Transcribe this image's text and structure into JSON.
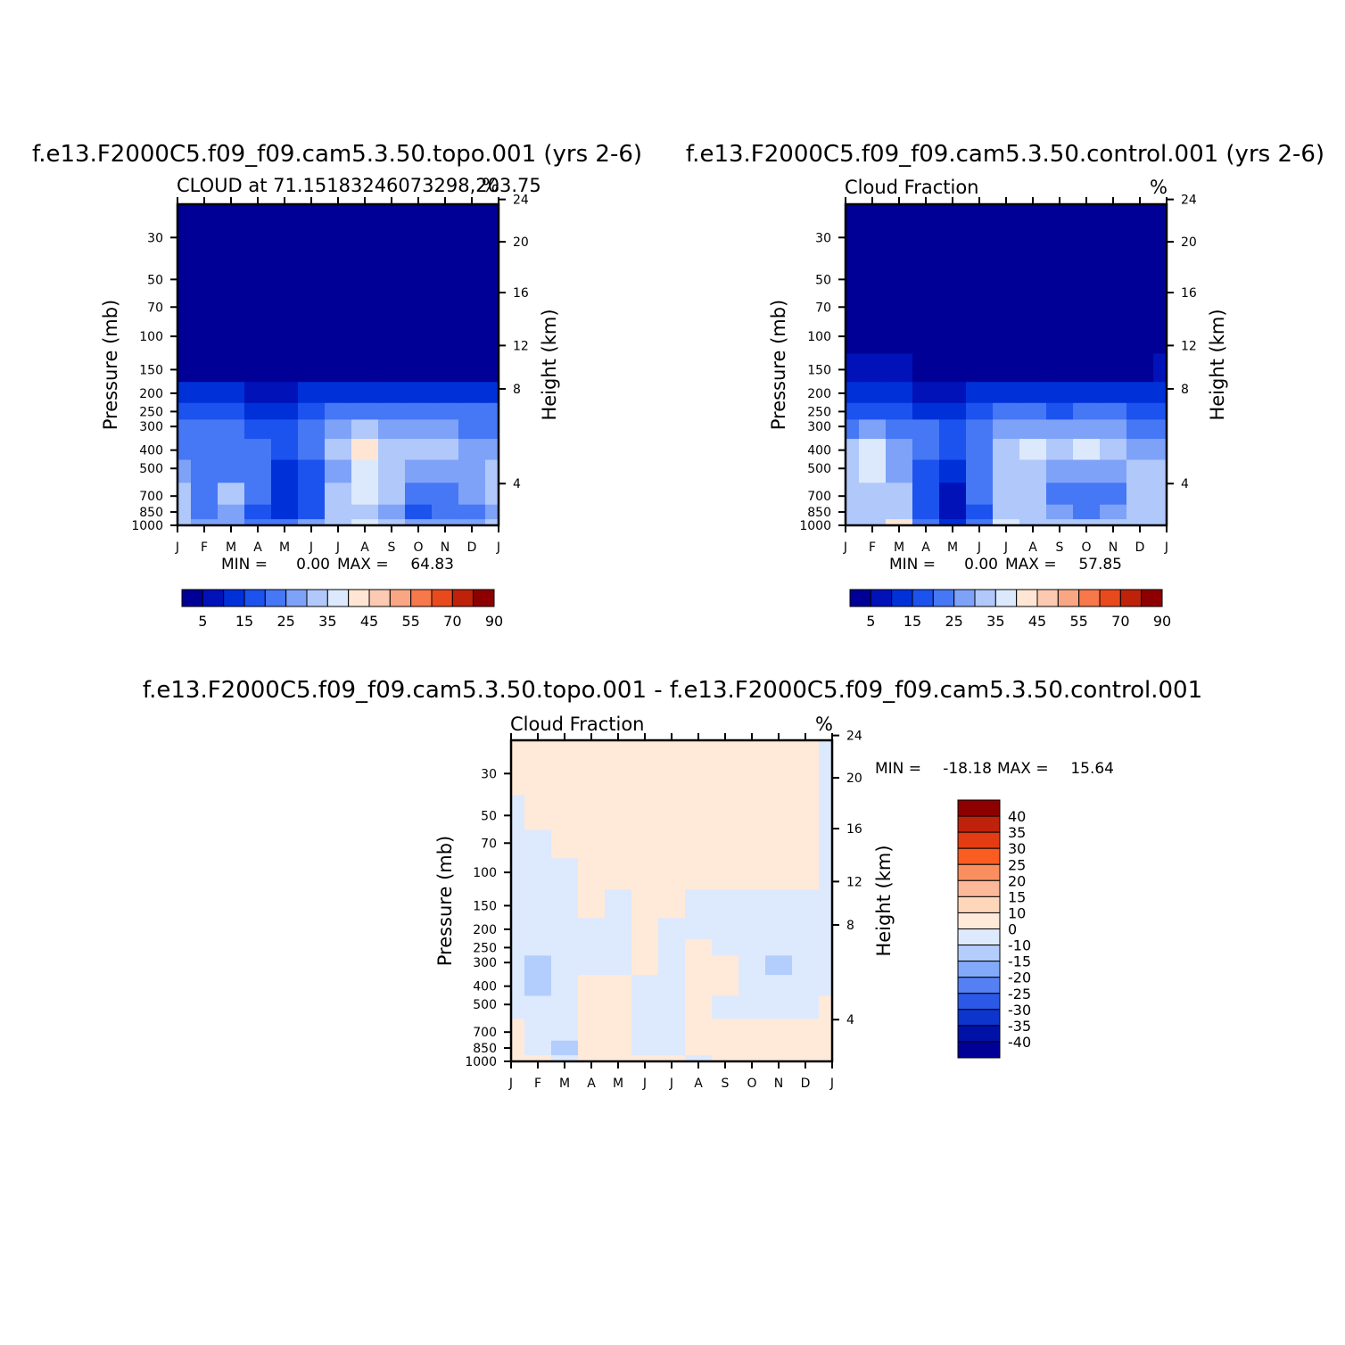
{
  "chart_data": [
    {
      "type": "heatmap",
      "title": "f.e13.F2000C5.f09_f09.cam5.3.50.topo.001 (yrs 2-6)",
      "subtitle_left": "CLOUD at 71.15183246073298,203.75",
      "units": "%",
      "ylabel": "Pressure (mb)",
      "ylabel_right": "Height (km)",
      "x": [
        "J",
        "F",
        "M",
        "A",
        "M",
        "J",
        "J",
        "A",
        "S",
        "O",
        "N",
        "D",
        "J"
      ],
      "pressure_levels": [
        1000,
        850,
        700,
        500,
        400,
        300,
        250,
        200,
        150,
        100,
        70,
        50,
        30
      ],
      "height_ticks": [
        4,
        8,
        12,
        16,
        20,
        24
      ],
      "min_text": "MIN =",
      "min_value": "0.00",
      "max_text": "MAX =",
      "max_value": "64.83",
      "colorbar_labels": [
        "5",
        "15",
        "25",
        "35",
        "45",
        "55",
        "70",
        "90"
      ],
      "values": [
        [
          32,
          28,
          26,
          24,
          22,
          26,
          30,
          36,
          30,
          28,
          26,
          27,
          30
        ],
        [
          30,
          22,
          28,
          18,
          10,
          18,
          32,
          34,
          28,
          18,
          22,
          24,
          28
        ],
        [
          30,
          22,
          30,
          20,
          12,
          18,
          30,
          36,
          32,
          22,
          24,
          26,
          30
        ],
        [
          26,
          22,
          24,
          20,
          14,
          18,
          28,
          38,
          32,
          28,
          26,
          28,
          30
        ],
        [
          24,
          22,
          22,
          20,
          18,
          22,
          30,
          42,
          32,
          30,
          30,
          28,
          28
        ],
        [
          20,
          20,
          20,
          18,
          18,
          22,
          28,
          32,
          28,
          28,
          26,
          24,
          24
        ],
        [
          16,
          16,
          16,
          14,
          14,
          18,
          22,
          22,
          20,
          22,
          20,
          20,
          20
        ],
        [
          10,
          10,
          12,
          8,
          8,
          10,
          14,
          12,
          12,
          12,
          12,
          12,
          10
        ],
        [
          3,
          3,
          4,
          3,
          3,
          3,
          4,
          3,
          3,
          3,
          3,
          3,
          3
        ],
        [
          1,
          1,
          1,
          1,
          1,
          1,
          1,
          1,
          1,
          1,
          1,
          1,
          1
        ],
        [
          0,
          0,
          0,
          0,
          0,
          0,
          0,
          0,
          0,
          0,
          0,
          0,
          0
        ],
        [
          0,
          0,
          0,
          0,
          0,
          0,
          0,
          0,
          0,
          0,
          0,
          0,
          0
        ],
        [
          0,
          0,
          0,
          0,
          0,
          0,
          0,
          0,
          0,
          0,
          0,
          0,
          0
        ]
      ]
    },
    {
      "type": "heatmap",
      "title": "f.e13.F2000C5.f09_f09.cam5.3.50.control.001 (yrs 2-6)",
      "subtitle_left": "Cloud Fraction",
      "units": "%",
      "ylabel": "Pressure (mb)",
      "ylabel_right": "Height (km)",
      "x": [
        "J",
        "F",
        "M",
        "A",
        "M",
        "J",
        "J",
        "A",
        "S",
        "O",
        "N",
        "D",
        "J"
      ],
      "pressure_levels": [
        1000,
        850,
        700,
        500,
        400,
        300,
        250,
        200,
        150,
        100,
        70,
        50,
        30
      ],
      "height_ticks": [
        4,
        8,
        12,
        16,
        20,
        24
      ],
      "min_text": "MIN =",
      "min_value": "0.00",
      "max_text": "MAX =",
      "max_value": "57.85",
      "colorbar_labels": [
        "5",
        "15",
        "25",
        "35",
        "45",
        "55",
        "70",
        "90"
      ],
      "values": [
        [
          34,
          32,
          40,
          22,
          12,
          20,
          36,
          32,
          30,
          32,
          32,
          34,
          34
        ],
        [
          30,
          32,
          34,
          16,
          8,
          18,
          32,
          32,
          26,
          24,
          28,
          30,
          30
        ],
        [
          32,
          32,
          30,
          16,
          8,
          20,
          32,
          32,
          24,
          20,
          24,
          30,
          30
        ],
        [
          32,
          36,
          28,
          18,
          12,
          22,
          30,
          32,
          28,
          26,
          28,
          30,
          30
        ],
        [
          30,
          36,
          28,
          20,
          18,
          22,
          30,
          38,
          30,
          36,
          30,
          28,
          28
        ],
        [
          24,
          26,
          24,
          22,
          18,
          22,
          26,
          28,
          26,
          28,
          26,
          24,
          24
        ],
        [
          18,
          18,
          18,
          14,
          14,
          16,
          20,
          20,
          18,
          20,
          20,
          18,
          18
        ],
        [
          12,
          14,
          12,
          8,
          8,
          10,
          12,
          12,
          12,
          12,
          12,
          10,
          12
        ],
        [
          6,
          8,
          6,
          3,
          3,
          4,
          4,
          4,
          4,
          4,
          4,
          4,
          6
        ],
        [
          1,
          2,
          1,
          1,
          1,
          1,
          1,
          1,
          1,
          1,
          1,
          1,
          1
        ],
        [
          0,
          0,
          0,
          0,
          0,
          0,
          0,
          0,
          0,
          0,
          0,
          0,
          0
        ],
        [
          0,
          0,
          0,
          0,
          0,
          0,
          0,
          0,
          0,
          0,
          0,
          0,
          0
        ],
        [
          0,
          0,
          0,
          0,
          0,
          0,
          0,
          0,
          0,
          0,
          0,
          0,
          0
        ]
      ]
    },
    {
      "type": "heatmap",
      "title": "f.e13.F2000C5.f09_f09.cam5.3.50.topo.001 - f.e13.F2000C5.f09_f09.cam5.3.50.control.001",
      "subtitle_left": "Cloud Fraction",
      "units": "%",
      "ylabel": "Pressure (mb)",
      "ylabel_right": "Height (km)",
      "x": [
        "J",
        "F",
        "M",
        "A",
        "M",
        "J",
        "J",
        "A",
        "S",
        "O",
        "N",
        "D",
        "J"
      ],
      "pressure_levels": [
        1000,
        850,
        700,
        500,
        400,
        300,
        250,
        200,
        150,
        100,
        70,
        50,
        30
      ],
      "height_ticks": [
        4,
        8,
        12,
        16,
        20,
        24
      ],
      "min_text": "MIN =",
      "min_value": "-18.18",
      "max_text": "MAX =",
      "max_value": "15.64",
      "colorbar_labels": [
        "40",
        "35",
        "30",
        "25",
        "20",
        "15",
        "10",
        "0",
        "-10",
        "-15",
        "-20",
        "-25",
        "-30",
        "-35",
        "-40"
      ],
      "values": [
        [
          4,
          2,
          -8,
          8,
          6,
          2,
          1,
          -2,
          2,
          4,
          2,
          1,
          4
        ],
        [
          2,
          -4,
          -12,
          2,
          4,
          -1,
          -4,
          2,
          6,
          4,
          6,
          6,
          2
        ],
        [
          1,
          -4,
          -3,
          2,
          2,
          -3,
          -4,
          3,
          4,
          2,
          3,
          2,
          1
        ],
        [
          -5,
          -6,
          -4,
          6,
          2,
          -3,
          -2,
          4,
          -2,
          -3,
          -2,
          -1,
          2
        ],
        [
          -6,
          -12,
          -6,
          4,
          2,
          -2,
          -2,
          4,
          3,
          -3,
          -2,
          -3,
          -2
        ],
        [
          -4,
          -11,
          -4,
          -2,
          -2,
          1,
          -2,
          4,
          2,
          -2,
          -12,
          -1,
          -2
        ],
        [
          -2,
          -4,
          -2,
          -1,
          -2,
          1,
          -2,
          2,
          -1,
          -1,
          -10,
          -1,
          -8
        ],
        [
          -2,
          -2,
          -2,
          -1,
          -2,
          2,
          -2,
          -1,
          -2,
          -1,
          -2,
          -1,
          -2
        ],
        [
          -3,
          -4,
          -2,
          1,
          -2,
          2,
          2,
          -1,
          -1,
          -1,
          -1,
          -1,
          -2
        ],
        [
          -4,
          -3,
          -3,
          2,
          2,
          2,
          2,
          2,
          2,
          2,
          2,
          1,
          -3
        ],
        [
          -6,
          -3,
          2,
          3,
          2,
          2,
          2,
          2,
          2,
          2,
          2,
          2,
          -3
        ],
        [
          -4,
          2,
          3,
          3,
          2,
          2,
          2,
          2,
          2,
          2,
          2,
          2,
          -2
        ],
        [
          0,
          2,
          3,
          3,
          2,
          2,
          2,
          2,
          2,
          2,
          2,
          2,
          -2
        ]
      ]
    }
  ],
  "colors": {
    "absolute_palette": [
      "#000096",
      "#0012b8",
      "#0030d8",
      "#1c52ee",
      "#4677f4",
      "#7ea2f8",
      "#b0c8fa",
      "#dce9fc",
      "#ffe6d4",
      "#fccab0",
      "#f9a684",
      "#f7784a",
      "#e84a1e",
      "#bf220a",
      "#8e0000"
    ],
    "difference_palette": [
      "#8e0000",
      "#bf220a",
      "#e43c12",
      "#fb5c22",
      "#f98f5e",
      "#fbb999",
      "#fed7bb",
      "#ffe9d9",
      "#dde9fd",
      "#b3cdfc",
      "#83a9fa",
      "#5480f4",
      "#2b58e6",
      "#0d34cc",
      "#0011a8",
      "#000096"
    ]
  }
}
